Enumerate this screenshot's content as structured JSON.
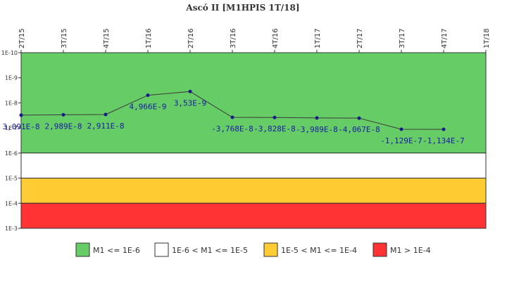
{
  "chart_data": {
    "type": "line",
    "title": "Ascó II [M1HPIS 1T/18]",
    "categories": [
      "2T/15",
      "3T/15",
      "4T/15",
      "1T/16",
      "2T/16",
      "3T/16",
      "4T/16",
      "1T/17",
      "2T/17",
      "3T/17",
      "4T/17",
      "1T/18"
    ],
    "y_scale": "log-reversed",
    "y_ticks": [
      "1E-10",
      "1E-9",
      "1E-8",
      "1E-7",
      "1E-6",
      "1E-5",
      "1E-4",
      "1E-3"
    ],
    "ylim": [
      1e-10,
      0.001
    ],
    "series": [
      {
        "color": "#3a3a3a",
        "marker_color": "#1a1a8c",
        "values": [
          3.091e-08,
          2.989e-08,
          2.911e-08,
          4.966e-09,
          3.53e-09,
          -3.768e-08,
          -3.828e-08,
          -3.989e-08,
          -4.067e-08,
          -1.129e-07,
          -1.134e-07,
          null
        ],
        "labels": [
          "3,091E-8",
          "2,989E-8",
          "2,911E-8",
          "4,966E-9",
          "3,53E-9",
          "-3,768E-8",
          "-3,828E-8",
          "-3,989E-8",
          "-4,067E-8",
          "-1,129E-7",
          "-1,134E-7",
          ""
        ]
      }
    ],
    "bands": [
      {
        "from": 1e-10,
        "to": 1e-06,
        "color": "#66cc66",
        "legend": "M1 <= 1E-6"
      },
      {
        "from": 1e-06,
        "to": 1e-05,
        "color": "#ffffff",
        "legend": "1E-6 < M1 <= 1E-5"
      },
      {
        "from": 1e-05,
        "to": 0.0001,
        "color": "#ffcc33",
        "legend": "1E-5 < M1 <= 1E-4"
      },
      {
        "from": 0.0001,
        "to": 0.001,
        "color": "#ff3333",
        "legend": "M1 > 1E-4"
      }
    ],
    "legend_position": "bottom",
    "grid": false
  }
}
